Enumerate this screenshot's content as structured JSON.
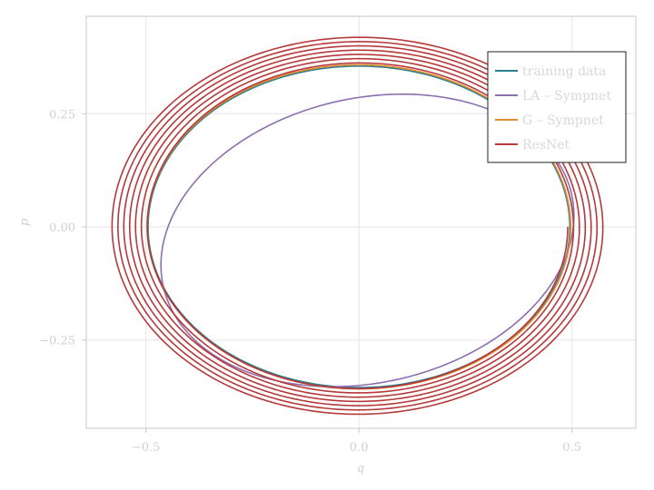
{
  "chart_data": {
    "type": "line",
    "title": "",
    "xlabel": "q",
    "ylabel": "p",
    "xlim": [
      -0.64,
      0.65
    ],
    "ylim": [
      -0.445,
      0.465
    ],
    "xticks": [
      -0.5,
      0.0,
      0.5
    ],
    "yticks": [
      -0.25,
      0.0,
      0.25
    ],
    "xtick_labels": [
      "−0.5",
      "0.0",
      "0.5"
    ],
    "ytick_labels": [
      "−0.25",
      "0.00",
      "0.25"
    ],
    "grid": true,
    "legend_position": "top-right",
    "series": [
      {
        "name": "training data",
        "color": "#2a7f8e",
        "kind": "ellipse",
        "cx": 0.0,
        "cy": 0.0,
        "rx": 0.495,
        "ry": 0.355
      },
      {
        "name": "LA – Sympnet",
        "color": "#8e6fb0",
        "kind": "ellipse",
        "cx": 0.02,
        "cy": -0.03,
        "rx": 0.49,
        "ry": 0.315,
        "tilt_deg": 11
      },
      {
        "name": "G – Sympnet",
        "color": "#e28a2e",
        "kind": "ellipse",
        "cx": 0.0,
        "cy": 0.0,
        "rx": 0.497,
        "ry": 0.358
      },
      {
        "name": "ResNet",
        "color": "#b5393a",
        "kind": "spiral",
        "cx": 0.0,
        "cy": 0.0,
        "rx_start": 0.49,
        "ry_start": 0.355,
        "rx_end": 0.585,
        "ry_end": 0.42,
        "turns": 6.9
      }
    ]
  }
}
